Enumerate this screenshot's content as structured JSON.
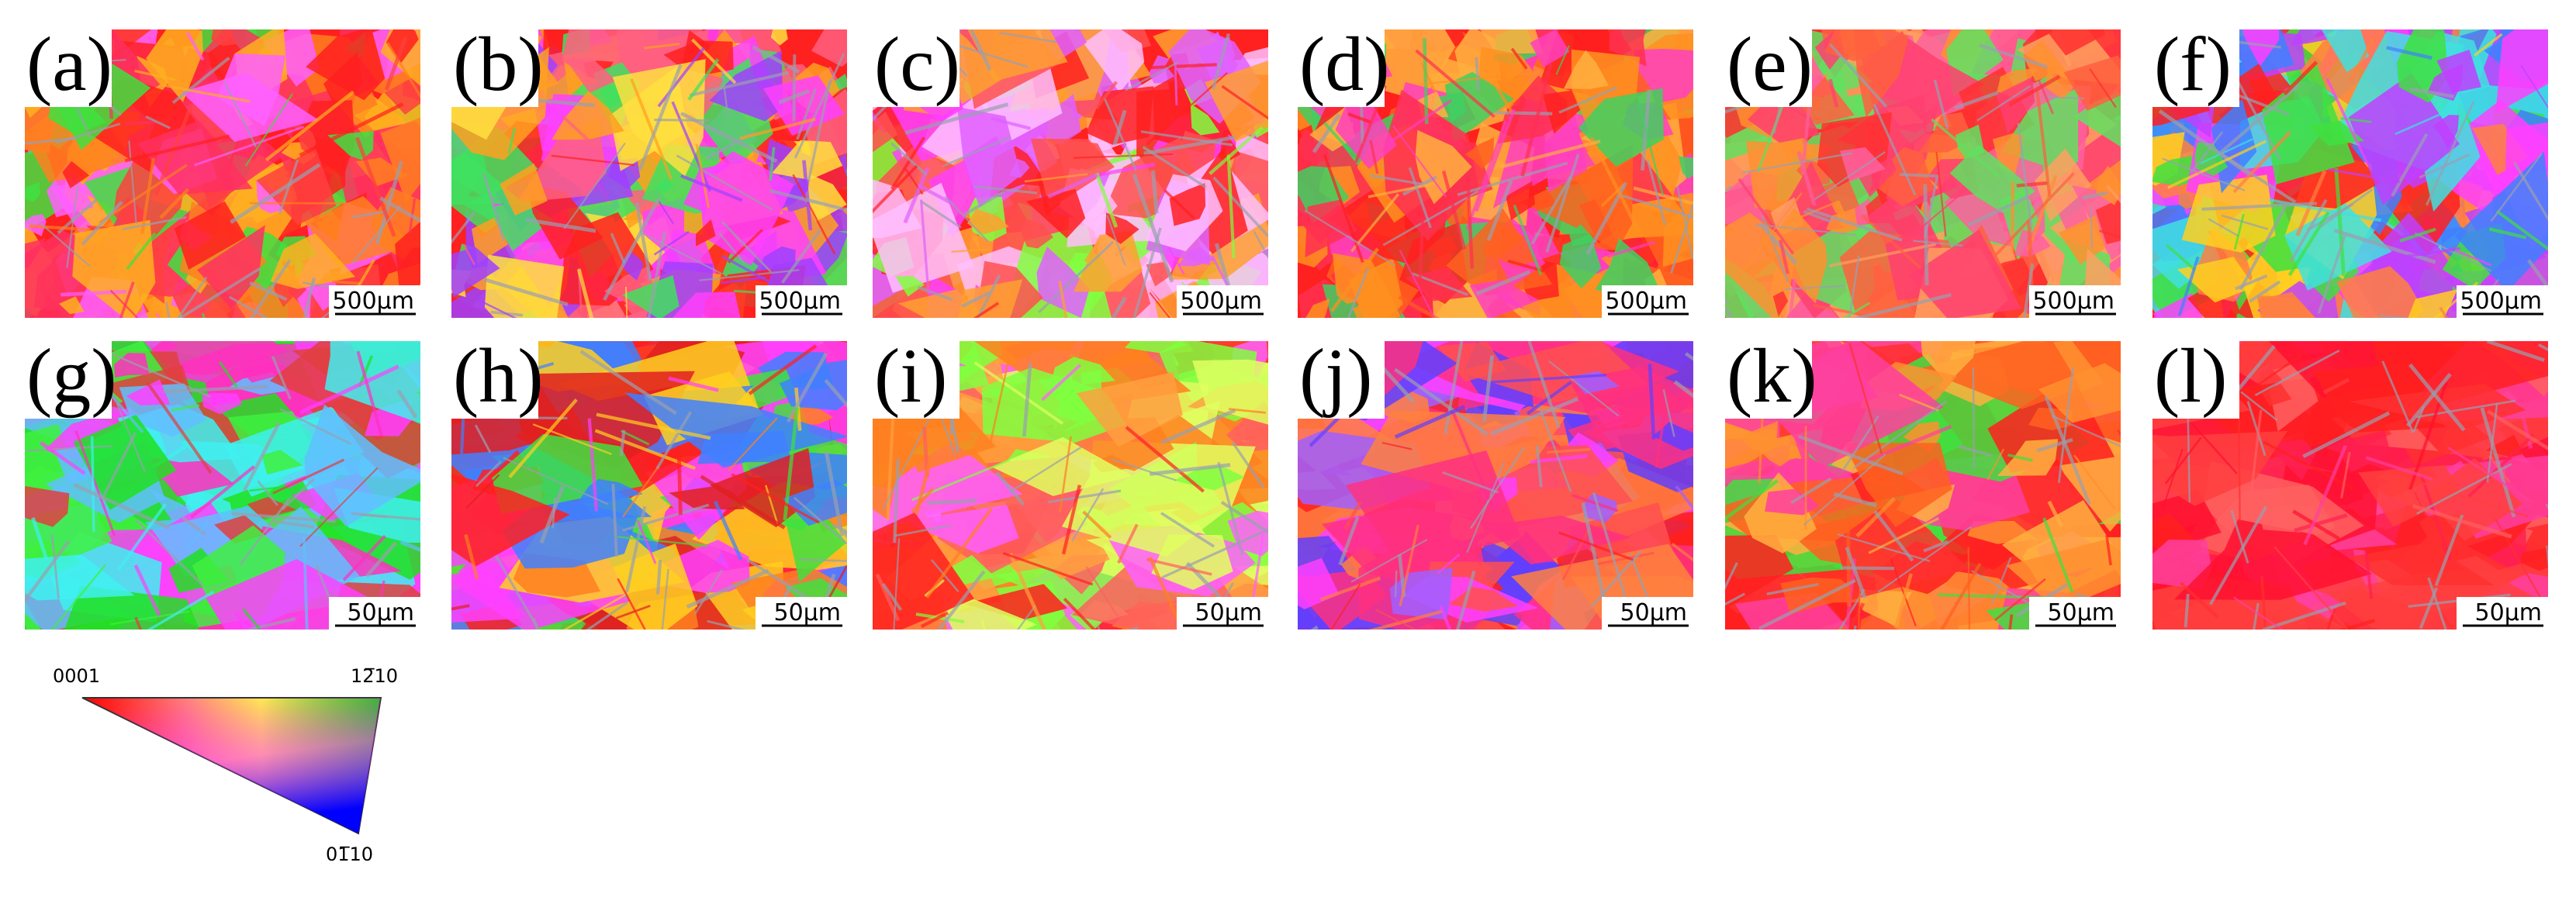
{
  "panels": [
    {
      "label": "(a)",
      "scale_bar": "500µm"
    },
    {
      "label": "(b)",
      "scale_bar": "500µm"
    },
    {
      "label": "(c)",
      "scale_bar": "500µm"
    },
    {
      "label": "(d)",
      "scale_bar": "500µm"
    },
    {
      "label": "(e)",
      "scale_bar": "500µm"
    },
    {
      "label": "(f)",
      "scale_bar": "500µm"
    },
    {
      "label": "(g)",
      "scale_bar": "50µm"
    },
    {
      "label": "(h)",
      "scale_bar": "50µm"
    },
    {
      "label": "(i)",
      "scale_bar": "50µm"
    },
    {
      "label": "(j)",
      "scale_bar": "50µm"
    },
    {
      "label": "(k)",
      "scale_bar": "50µm"
    },
    {
      "label": "(l)",
      "scale_bar": "50µm"
    }
  ],
  "legend": {
    "labels": [
      "0001",
      "12̅10",
      "01̅10"
    ]
  }
}
